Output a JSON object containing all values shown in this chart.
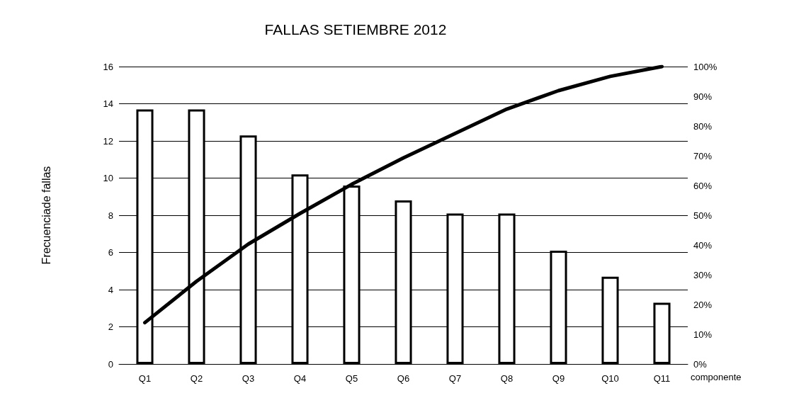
{
  "chart_data": {
    "type": "bar",
    "title": "FALLAS SETIEMBRE 2012",
    "xlabel": "componente",
    "ylabel": "Frecuenciade fallas",
    "categories": [
      "Q1",
      "Q2",
      "Q3",
      "Q4",
      "Q5",
      "Q6",
      "Q7",
      "Q8",
      "Q9",
      "Q10",
      "Q11"
    ],
    "series": [
      {
        "color": "#ffffff",
        "values": [
          13.7,
          13.7,
          12.3,
          10.2,
          9.6,
          8.8,
          8.1,
          8.1,
          6.1,
          4.7,
          3.3
        ]
      },
      {
        "type": "line",
        "axis": "y2",
        "color": "#000000",
        "values": [
          13.9,
          27.8,
          40.3,
          50.6,
          60.4,
          69.3,
          77.5,
          85.7,
          91.9,
          96.7,
          100
        ]
      }
    ],
    "ylim": [
      0,
      16
    ],
    "yticks": [
      0,
      2,
      4,
      6,
      8,
      10,
      12,
      14,
      16
    ],
    "y2lim": [
      0,
      100
    ],
    "y2ticks": [
      {
        "value": 0,
        "label": "0%"
      },
      {
        "value": 10,
        "label": "10%"
      },
      {
        "value": 20,
        "label": "20%"
      },
      {
        "value": 30,
        "label": "30%"
      },
      {
        "value": 40,
        "label": "40%"
      },
      {
        "value": 50,
        "label": "50%"
      },
      {
        "value": 60,
        "label": "60%"
      },
      {
        "value": 70,
        "label": "70%"
      },
      {
        "value": 80,
        "label": "80%"
      },
      {
        "value": 90,
        "label": "90%"
      },
      {
        "value": 100,
        "label": "100%"
      }
    ],
    "grid": "y",
    "marker": "none",
    "line_style": "solid"
  }
}
